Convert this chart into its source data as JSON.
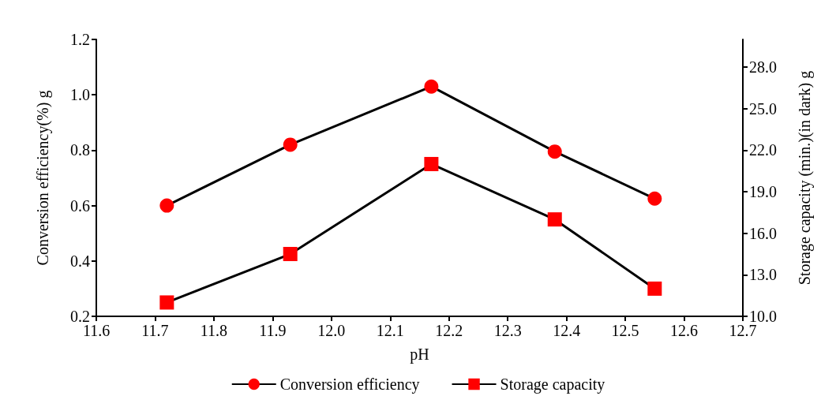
{
  "chart_data": {
    "type": "line",
    "xlabel": "pH",
    "ylabel": "Conversion efficiency(%) g",
    "y2label": "Storage capacity (min.)(in dark) g",
    "x": [
      11.72,
      11.93,
      12.17,
      12.38,
      12.55
    ],
    "series": [
      {
        "name": "Conversion efficiency",
        "color": "#ff0000",
        "marker": "circle",
        "values": [
          0.6,
          0.82,
          1.03,
          0.795,
          0.625
        ]
      },
      {
        "name": "Storage capacity",
        "color": "#ff0000",
        "marker": "square",
        "axis": "y2",
        "values": [
          11.0,
          14.5,
          21.0,
          17.0,
          12.0
        ]
      }
    ],
    "xlim": [
      11.6,
      12.7
    ],
    "xticks": [
      11.6,
      11.7,
      11.8,
      11.9,
      {
        "value": 12,
        "label": "12.0"
      },
      12.1,
      12.2,
      12.3,
      12.4,
      12.5,
      12.6,
      12.7
    ],
    "ylim": [
      0.2,
      1.2
    ],
    "yticks": [
      0.2,
      0.4,
      0.6,
      0.8,
      {
        "value": 1,
        "label": "1.0"
      },
      1.2
    ],
    "y2lim": [
      10,
      30
    ],
    "y2ticks": [
      {
        "value": 10,
        "label": "10.0"
      },
      {
        "value": 13,
        "label": "13.0"
      },
      {
        "value": 16,
        "label": "16.0"
      },
      {
        "value": 19,
        "label": "19.0"
      },
      {
        "value": 22,
        "label": "22.0"
      },
      {
        "value": 25,
        "label": "25.0"
      },
      {
        "value": 28,
        "label": "28.0"
      }
    ],
    "grid": false,
    "legend": "bottom",
    "line_style": "solid"
  }
}
